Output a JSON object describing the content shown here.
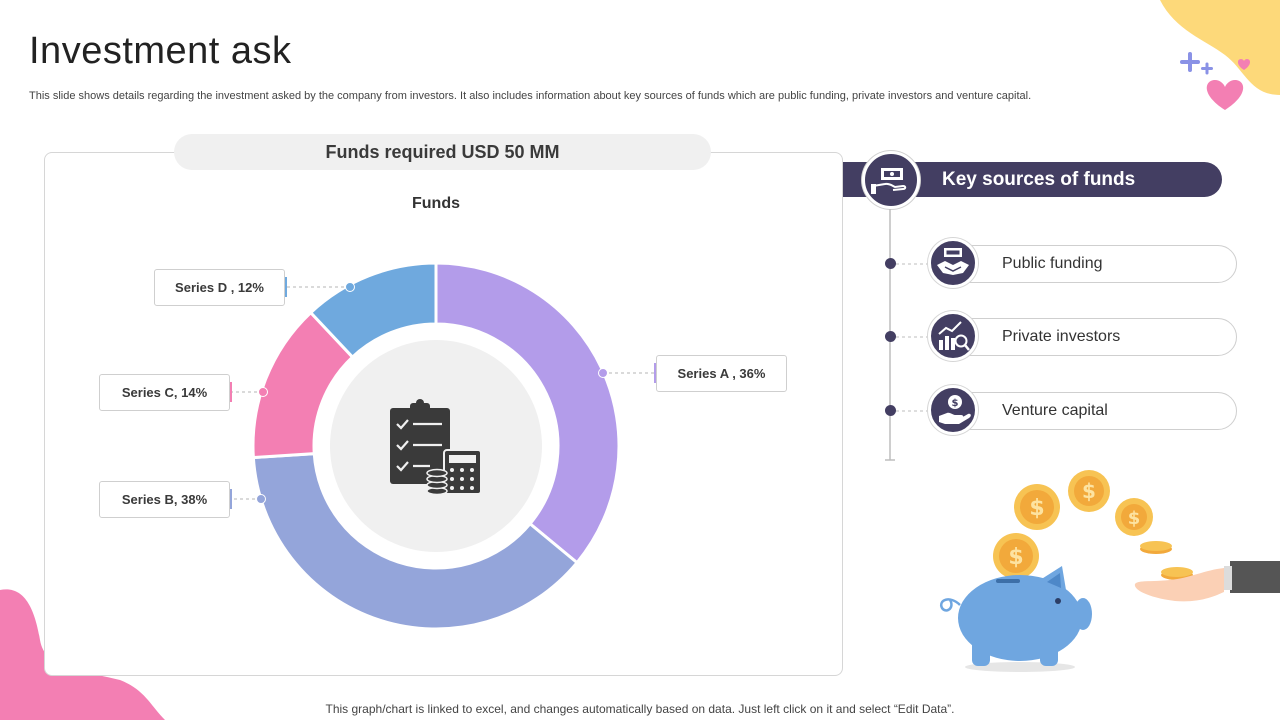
{
  "header": {
    "title": "Investment ask",
    "subtitle": "This slide shows details regarding the investment asked by the company from investors. It also includes information about key sources of funds which are public funding, private investors and venture capital."
  },
  "funds": {
    "required_label": "Funds required USD 50 MM",
    "center_icon": "clipboard-calculator-icon"
  },
  "chart_data": {
    "type": "pie",
    "title": "Funds",
    "donut": true,
    "series": [
      {
        "name": "Series A",
        "value": 36,
        "label": "Series A , 36%",
        "color": "#b39cea"
      },
      {
        "name": "Series B",
        "value": 38,
        "label": "Series B, 38%",
        "color": "#94a5da"
      },
      {
        "name": "Series C",
        "value": 14,
        "label": "Series C, 14%",
        "color": "#f37fb3"
      },
      {
        "name": "Series D",
        "value": 12,
        "label": "Series D , 12%",
        "color": "#6fa9de"
      }
    ]
  },
  "key_sources": {
    "title": "Key sources of funds",
    "header_icon": "hand-money-icon",
    "items": [
      {
        "label": "Public funding",
        "icon": "handshake-icon"
      },
      {
        "label": "Private investors",
        "icon": "growth-chart-icon"
      },
      {
        "label": "Venture capital",
        "icon": "hand-dollar-icon"
      }
    ]
  },
  "footer": {
    "note": "This graph/chart is linked to excel,  and changes automatically based on data. Just left click on it and select “Edit Data”."
  },
  "colors": {
    "accent_dark": "#433e62",
    "pink": "#f37fb3",
    "yellow": "#fdd97a"
  }
}
